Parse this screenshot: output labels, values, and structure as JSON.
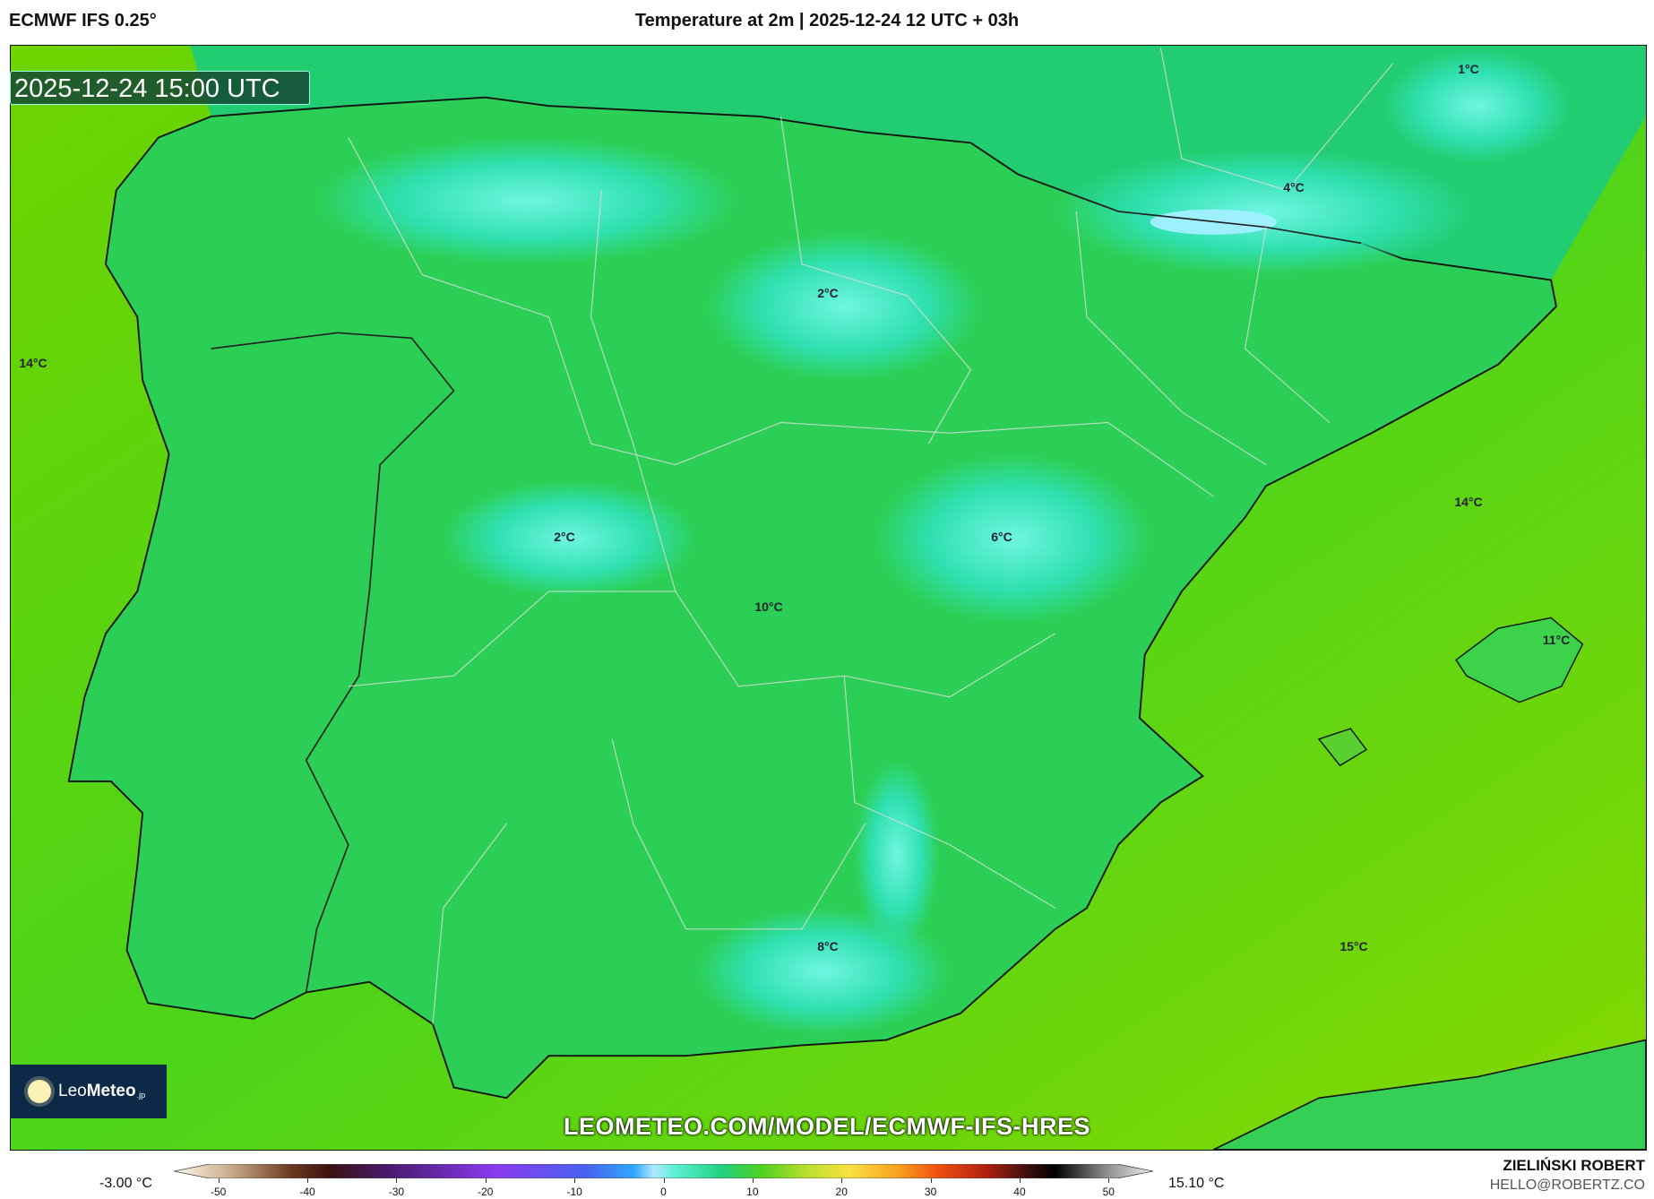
{
  "header": {
    "model": "ECMWF IFS 0.25°",
    "title": "Temperature at 2m | 2025-12-24 12 UTC + 03h"
  },
  "map": {
    "valid_time": "2025-12-24 15:00 UTC",
    "url": "LEOMETEO.COM/MODEL/ECMWF-IFS-HRES",
    "labels": [
      "1°C",
      "4°C",
      "2°C",
      "14°C",
      "14°C",
      "2°C",
      "6°C",
      "10°C",
      "11°C",
      "15°C",
      "8°C"
    ],
    "colors": {
      "sea": "#7fd800",
      "land": "#2fcf4a",
      "cold": "#3fe8c8"
    }
  },
  "logo": {
    "name_light": "Leo",
    "name_bold": "Meteo",
    "tld": ".jp"
  },
  "legend": {
    "min_value": "-3.00 °C",
    "max_value": "15.10 °C",
    "ticks": [
      "-50",
      "-40",
      "-30",
      "-20",
      "-10",
      "0",
      "10",
      "20",
      "30",
      "40",
      "50"
    ],
    "range": [
      -55,
      55
    ]
  },
  "credits": {
    "author": "ZIELIŃSKI ROBERT",
    "email": "HELLO@ROBERTZ.CO"
  }
}
